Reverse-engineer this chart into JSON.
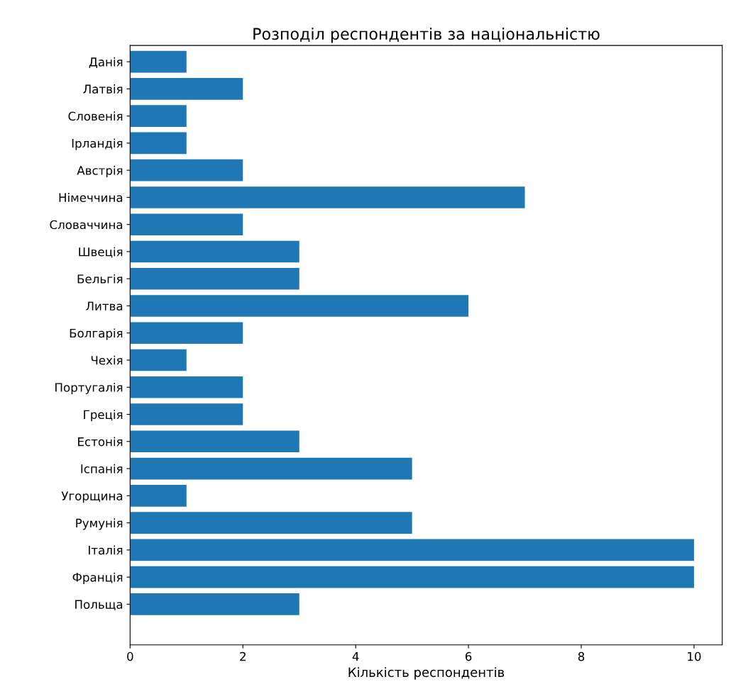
{
  "chart_data": {
    "type": "bar",
    "orientation": "horizontal",
    "title": "Розподіл респондентів за національністю",
    "xlabel": "Кількість респондентів",
    "categories": [
      "Данія",
      "Латвія",
      "Словенія",
      "Ірландія",
      "Австрія",
      "Німеччина",
      "Словаччина",
      "Швеція",
      "Бельгія",
      "Литва",
      "Болгарія",
      "Чехія",
      "Португалія",
      "Греція",
      "Естонія",
      "Іспанія",
      "Угорщина",
      "Румунія",
      "Італія",
      "Франція",
      "Польща"
    ],
    "values": [
      1,
      2,
      1,
      1,
      2,
      7,
      2,
      3,
      3,
      6,
      2,
      1,
      2,
      2,
      3,
      5,
      1,
      5,
      10,
      10,
      3
    ],
    "color": "#1f77b4",
    "xlim": [
      0,
      10.5
    ],
    "xticks": [
      0,
      2,
      4,
      6,
      8,
      10
    ],
    "grid": false,
    "legend": false
  }
}
